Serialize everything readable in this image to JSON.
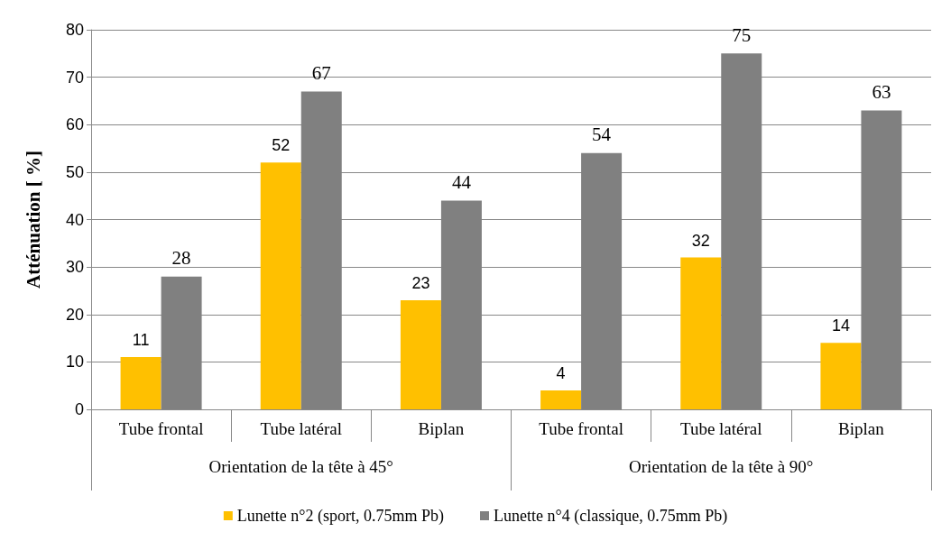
{
  "chart_data": {
    "type": "bar",
    "ylabel": "Atténuation [ %]",
    "categories": [
      "Tube frontal",
      "Tube latéral",
      "Biplan",
      "Tube frontal",
      "Tube latéral",
      "Biplan"
    ],
    "annotations": [
      "Orientation de la tête à 45°",
      "Orientation de la tête à 90°"
    ],
    "series": [
      {
        "name": "Lunette n°2 (sport, 0.75mm Pb)",
        "color": "#ffc000",
        "values": [
          11,
          52,
          23,
          4,
          32,
          14
        ]
      },
      {
        "name": "Lunette n°4 (classique, 0.75mm Pb)",
        "color": "#808080",
        "values": [
          28,
          67,
          44,
          54,
          75,
          63
        ]
      }
    ],
    "ylim": [
      0,
      80
    ],
    "yticks": [
      0,
      10,
      20,
      30,
      40,
      50,
      60,
      70,
      80
    ],
    "grid": "y",
    "legend": "bottom",
    "data_labels": true
  }
}
